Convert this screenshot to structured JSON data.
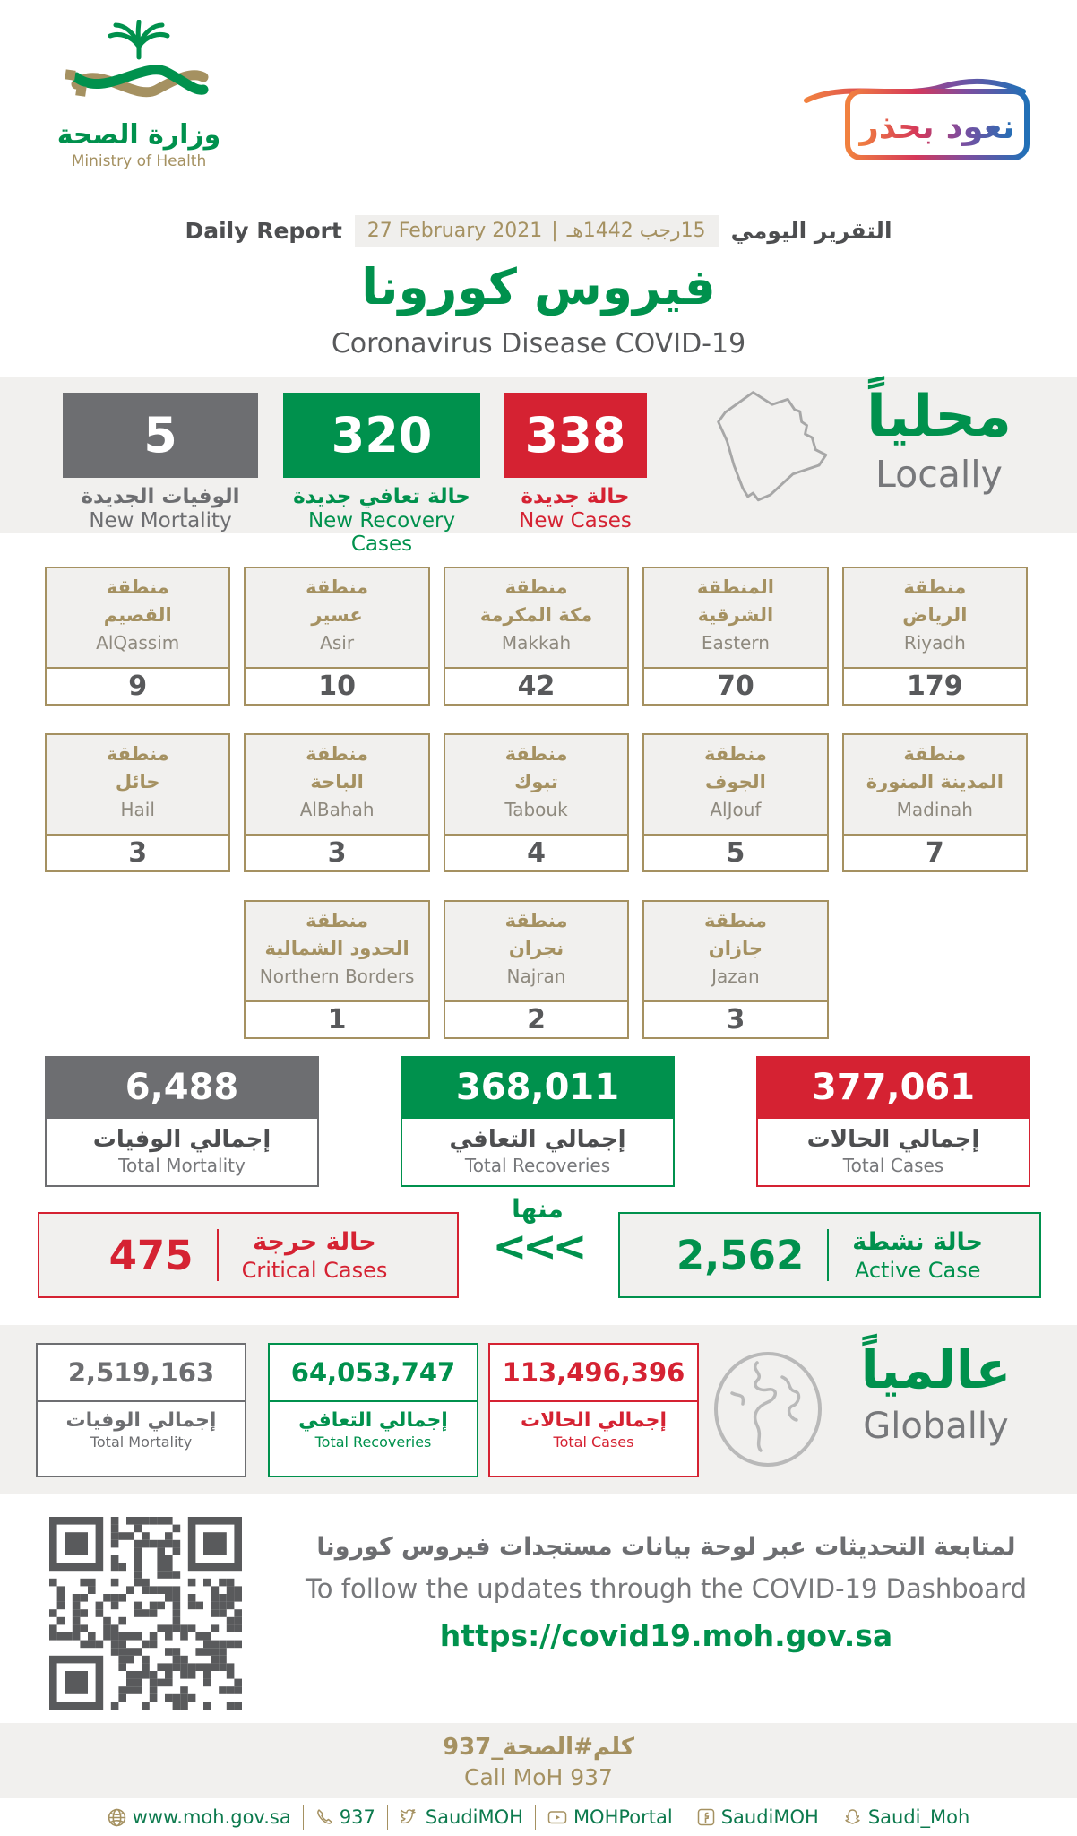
{
  "colors": {
    "green": "#00914d",
    "red": "#d52232",
    "gray": "#6d6e71",
    "gold": "#a59161",
    "light_bg": "#f1f0ee",
    "link_green": "#0d7a4e"
  },
  "logo": {
    "title_ar": "وزارة الصحة",
    "title_en": "Ministry of Health"
  },
  "badge": {
    "text": "نعود بحذر"
  },
  "report": {
    "label_en": "Daily Report",
    "date_en": "27 February 2021",
    "separator": "|",
    "date_ar": "15رجب 1442هـ",
    "label_ar": "التقرير اليومي"
  },
  "title": {
    "ar": "فيروس كورونا",
    "en": "Coronavirus Disease COVID-19"
  },
  "locally": {
    "heading_ar": "محلياً",
    "heading_en": "Locally",
    "new_mortality": {
      "value": "5",
      "label_ar": "الوفيات الجديدة",
      "label_en": "New Mortality"
    },
    "new_recoveries": {
      "value": "320",
      "label_ar": "حالة تعافي جديدة",
      "label_en": "New Recovery Cases"
    },
    "new_cases": {
      "value": "338",
      "label_ar": "حالة جديدة",
      "label_en": "New Cases"
    }
  },
  "regions": {
    "row1": [
      {
        "name_ar_1": "منطقة",
        "name_ar_2": "الرياض",
        "name_en": "Riyadh",
        "value": "179"
      },
      {
        "name_ar_1": "المنطقة",
        "name_ar_2": "الشرقية",
        "name_en": "Eastern",
        "value": "70"
      },
      {
        "name_ar_1": "منطقة",
        "name_ar_2": "مكة المكرمة",
        "name_en": "Makkah",
        "value": "42"
      },
      {
        "name_ar_1": "منطقة",
        "name_ar_2": "عسير",
        "name_en": "Asir",
        "value": "10"
      },
      {
        "name_ar_1": "منطقة",
        "name_ar_2": "القصيم",
        "name_en": "AlQassim",
        "value": "9"
      }
    ],
    "row2": [
      {
        "name_ar_1": "منطقة",
        "name_ar_2": "المدينة المنورة",
        "name_en": "Madinah",
        "value": "7"
      },
      {
        "name_ar_1": "منطقة",
        "name_ar_2": "الجوف",
        "name_en": "AlJouf",
        "value": "5"
      },
      {
        "name_ar_1": "منطقة",
        "name_ar_2": "تبوك",
        "name_en": "Tabouk",
        "value": "4"
      },
      {
        "name_ar_1": "منطقة",
        "name_ar_2": "الباحة",
        "name_en": "AlBahah",
        "value": "3"
      },
      {
        "name_ar_1": "منطقة",
        "name_ar_2": "حائل",
        "name_en": "Hail",
        "value": "3"
      }
    ],
    "row3": [
      {
        "name_ar_1": "منطقة",
        "name_ar_2": "جازان",
        "name_en": "Jazan",
        "value": "3"
      },
      {
        "name_ar_1": "منطقة",
        "name_ar_2": "نجران",
        "name_en": "Najran",
        "value": "2"
      },
      {
        "name_ar_1": "منطقة",
        "name_ar_2": "الحدود الشمالية",
        "name_en": "Northern Borders",
        "value": "1"
      }
    ]
  },
  "totals": {
    "mortality": {
      "value": "6,488",
      "label_ar": "إجمالي الوفيات",
      "label_en": "Total Mortality"
    },
    "recoveries": {
      "value": "368,011",
      "label_ar": "إجمالي التعافي",
      "label_en": "Total Recoveries"
    },
    "cases": {
      "value": "377,061",
      "label_ar": "إجمالي الحالات",
      "label_en": "Total Cases"
    }
  },
  "breakdown": {
    "critical": {
      "value": "475",
      "label_ar": "حالة حرجة",
      "label_en": "Critical Cases"
    },
    "of_which_ar": "منها",
    "chevrons": "<<<",
    "active": {
      "value": "2,562",
      "label_ar": "حالة نشطة",
      "label_en": "Active Case"
    }
  },
  "globally": {
    "heading_ar": "عالمياً",
    "heading_en": "Globally",
    "mortality": {
      "value": "2,519,163",
      "label_ar": "إجمالي الوفيات",
      "label_en": "Total Mortality"
    },
    "recoveries": {
      "value": "64,053,747",
      "label_ar": "إجمالي التعافي",
      "label_en": "Total Recoveries"
    },
    "cases": {
      "value": "113,496,396",
      "label_ar": "إجمالي الحالات",
      "label_en": "Total Cases"
    }
  },
  "dashboard": {
    "line_ar": "لمتابعة التحديثات عبر لوحة بيانات مستجدات فيروس كورونا",
    "line_en": "To follow the updates through the COVID-19 Dashboard",
    "url": "https://covid19.moh.gov.sa"
  },
  "footer": {
    "call_ar": "كلم#الصحة_937",
    "call_en": "Call MoH 937",
    "contacts": [
      {
        "icon": "globe-icon",
        "label": "www.moh.gov.sa"
      },
      {
        "icon": "phone-icon",
        "label": "937"
      },
      {
        "icon": "twitter-icon",
        "label": "SaudiMOH"
      },
      {
        "icon": "youtube-icon",
        "label": "MOHPortal"
      },
      {
        "icon": "facebook-icon",
        "label": "SaudiMOH"
      },
      {
        "icon": "snapchat-icon",
        "label": "Saudi_Moh"
      }
    ]
  }
}
